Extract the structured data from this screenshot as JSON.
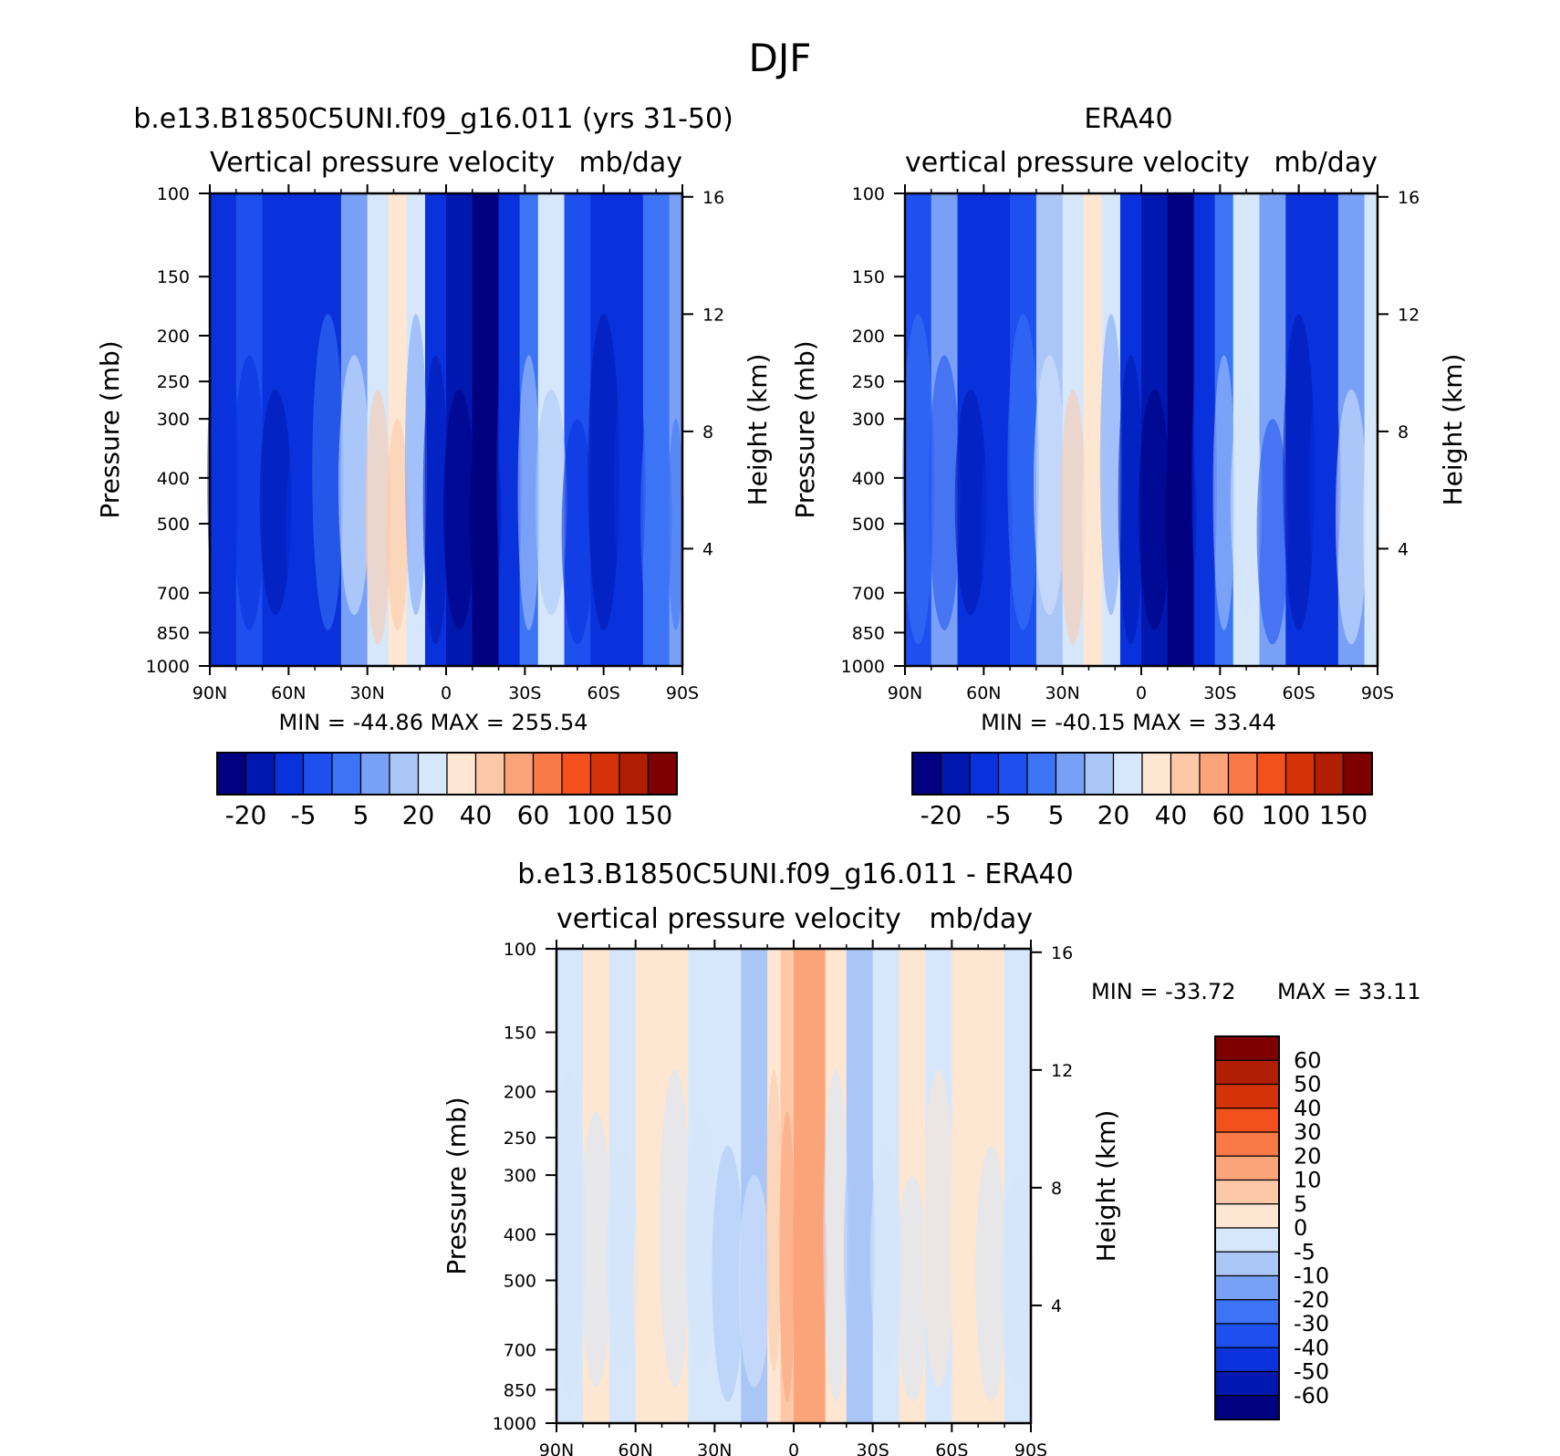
{
  "figure": {
    "title": "DJF"
  },
  "chart_data": [
    {
      "type": "heatmap",
      "title": "b.e13.B1850C5UNI.f09_g16.011 (yrs 31-50)",
      "subtitle_left": "Vertical pressure velocity",
      "subtitle_right": "mb/day",
      "ylabel": "Pressure (mb)",
      "y2label": "Height (km)",
      "x_ticks": [
        "90N",
        "60N",
        "30N",
        "0",
        "30S",
        "60S",
        "90S"
      ],
      "y_ticks": [
        "100",
        "150",
        "200",
        "250",
        "300",
        "400",
        "500",
        "700",
        "850",
        "1000"
      ],
      "y2_ticks": [
        "16",
        "12",
        "8",
        "4"
      ],
      "xlim": [
        "90N",
        "90S"
      ],
      "ylim": [
        1000,
        100
      ],
      "y_scale": "log",
      "stats": "MIN = -44.86   MAX = 255.54",
      "colorbar": {
        "orientation": "horizontal",
        "labels": [
          "-20",
          "-5",
          "5",
          "20",
          "40",
          "60",
          "100",
          "150"
        ],
        "colors": [
          "#000080",
          "#0018b0",
          "#0a32dc",
          "#1e50f0",
          "#3c74f5",
          "#78a0f7",
          "#aac6f7",
          "#d6e6fb",
          "#fde6d2",
          "#fcc8a8",
          "#fba47a",
          "#f97a46",
          "#f2501c",
          "#d43208",
          "#b01e04",
          "#7e0000"
        ]
      },
      "bands": [
        {
          "lat": 90,
          "v": -10
        },
        {
          "lat": 80,
          "v": -8
        },
        {
          "lat": 70,
          "v": -14
        },
        {
          "lat": 60,
          "v": -18
        },
        {
          "lat": 50,
          "v": -10
        },
        {
          "lat": 40,
          "v": 5
        },
        {
          "lat": 30,
          "v": 20
        },
        {
          "lat": 22,
          "v": 28
        },
        {
          "lat": 15,
          "v": 16
        },
        {
          "lat": 8,
          "v": -12
        },
        {
          "lat": 0,
          "v": -26
        },
        {
          "lat": -10,
          "v": -32
        },
        {
          "lat": -20,
          "v": -16
        },
        {
          "lat": -28,
          "v": -2
        },
        {
          "lat": -35,
          "v": 14
        },
        {
          "lat": -45,
          "v": -5
        },
        {
          "lat": -55,
          "v": -14
        },
        {
          "lat": -65,
          "v": -16
        },
        {
          "lat": -75,
          "v": -4
        },
        {
          "lat": -85,
          "v": 2
        },
        {
          "lat": -90,
          "v": -8
        }
      ]
    },
    {
      "type": "heatmap",
      "title": "ERA40",
      "subtitle_left": "vertical pressure velocity",
      "subtitle_right": "mb/day",
      "ylabel": "Pressure (mb)",
      "y2label": "Height (km)",
      "x_ticks": [
        "90N",
        "60N",
        "30N",
        "0",
        "30S",
        "60S",
        "90S"
      ],
      "y_ticks": [
        "100",
        "150",
        "200",
        "250",
        "300",
        "400",
        "500",
        "700",
        "850",
        "1000"
      ],
      "y2_ticks": [
        "16",
        "12",
        "8",
        "4"
      ],
      "xlim": [
        "90N",
        "90S"
      ],
      "ylim": [
        1000,
        100
      ],
      "y_scale": "log",
      "stats": "MIN = -40.15   MAX =   33.44",
      "colorbar": {
        "orientation": "horizontal",
        "labels": [
          "-20",
          "-5",
          "5",
          "20",
          "40",
          "60",
          "100",
          "150"
        ],
        "colors": [
          "#000080",
          "#0018b0",
          "#0a32dc",
          "#1e50f0",
          "#3c74f5",
          "#78a0f7",
          "#aac6f7",
          "#d6e6fb",
          "#fde6d2",
          "#fcc8a8",
          "#fba47a",
          "#f97a46",
          "#f2501c",
          "#d43208",
          "#b01e04",
          "#7e0000"
        ]
      },
      "bands": [
        {
          "lat": 90,
          "v": -6
        },
        {
          "lat": 80,
          "v": 4
        },
        {
          "lat": 70,
          "v": -12
        },
        {
          "lat": 60,
          "v": -18
        },
        {
          "lat": 50,
          "v": -8
        },
        {
          "lat": 40,
          "v": 6
        },
        {
          "lat": 30,
          "v": 18
        },
        {
          "lat": 22,
          "v": 26
        },
        {
          "lat": 15,
          "v": 14
        },
        {
          "lat": 8,
          "v": -10
        },
        {
          "lat": 0,
          "v": -24
        },
        {
          "lat": -10,
          "v": -34
        },
        {
          "lat": -20,
          "v": -18
        },
        {
          "lat": -28,
          "v": -3
        },
        {
          "lat": -35,
          "v": 12
        },
        {
          "lat": -45,
          "v": 4
        },
        {
          "lat": -55,
          "v": -12
        },
        {
          "lat": -65,
          "v": -18
        },
        {
          "lat": -75,
          "v": 3
        },
        {
          "lat": -85,
          "v": 14
        },
        {
          "lat": -90,
          "v": 5
        }
      ]
    },
    {
      "type": "heatmap",
      "title": "b.e13.B1850C5UNI.f09_g16.011 - ERA40",
      "subtitle_left": "vertical pressure velocity",
      "subtitle_right": "mb/day",
      "ylabel": "Pressure (mb)",
      "y2label": "Height (km)",
      "x_ticks": [
        "90N",
        "60N",
        "30N",
        "0",
        "30S",
        "60S",
        "90S"
      ],
      "y_ticks": [
        "100",
        "150",
        "200",
        "250",
        "300",
        "400",
        "500",
        "700",
        "850",
        "1000"
      ],
      "y2_ticks": [
        "16",
        "12",
        "8",
        "4"
      ],
      "xlim": [
        "90N",
        "90S"
      ],
      "ylim": [
        1000,
        100
      ],
      "y_scale": "log",
      "stats_min": "MIN = -33.72",
      "stats_max": "MAX =   33.11",
      "colorbar": {
        "orientation": "vertical",
        "labels": [
          "60",
          "50",
          "40",
          "30",
          "20",
          "10",
          "5",
          "0",
          "-5",
          "-10",
          "-20",
          "-30",
          "-40",
          "-50",
          "-60"
        ],
        "colors": [
          "#7e0000",
          "#b01e04",
          "#d43208",
          "#f2501c",
          "#f97a46",
          "#fba47a",
          "#fcc8a8",
          "#fde6d2",
          "#d6e6fb",
          "#aac6f7",
          "#78a0f7",
          "#3c74f5",
          "#1e50f0",
          "#0a32dc",
          "#0018b0",
          "#000080"
        ]
      },
      "bands": [
        {
          "lat": 90,
          "v": -2
        },
        {
          "lat": 80,
          "v": 2
        },
        {
          "lat": 70,
          "v": -3
        },
        {
          "lat": 60,
          "v": 2
        },
        {
          "lat": 50,
          "v": 3
        },
        {
          "lat": 40,
          "v": -3
        },
        {
          "lat": 30,
          "v": -4
        },
        {
          "lat": 20,
          "v": -6
        },
        {
          "lat": 10,
          "v": 3
        },
        {
          "lat": 5,
          "v": 8
        },
        {
          "lat": 0,
          "v": 12
        },
        {
          "lat": -5,
          "v": 16
        },
        {
          "lat": -12,
          "v": 4
        },
        {
          "lat": -20,
          "v": -8
        },
        {
          "lat": -30,
          "v": -3
        },
        {
          "lat": -40,
          "v": 2
        },
        {
          "lat": -50,
          "v": -2
        },
        {
          "lat": -60,
          "v": 3
        },
        {
          "lat": -70,
          "v": 2
        },
        {
          "lat": -80,
          "v": -4
        },
        {
          "lat": -90,
          "v": 2
        }
      ]
    }
  ]
}
